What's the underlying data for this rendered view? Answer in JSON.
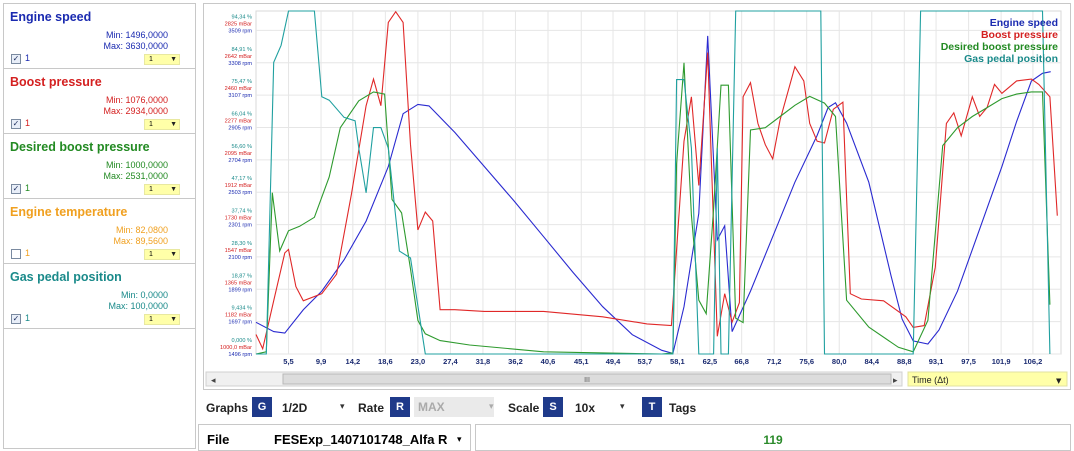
{
  "signals": [
    {
      "name": "Engine speed",
      "color": "#1a2ab0",
      "min": "Min: 1496,0000",
      "max": "Max: 3630,0000",
      "checked": true,
      "id": "1",
      "combo": "1"
    },
    {
      "name": "Boost pressure",
      "color": "#d42020",
      "min": "Min: 1076,0000",
      "max": "Max: 2934,0000",
      "checked": true,
      "id": "1",
      "combo": "1"
    },
    {
      "name": "Desired boost pressure",
      "color": "#228a22",
      "min": "Min: 1000,0000",
      "max": "Max: 2531,0000",
      "checked": true,
      "id": "1",
      "combo": "1"
    },
    {
      "name": "Engine temperature",
      "color": "#f0a020",
      "min": "Min: 82,0800",
      "max": "Max: 89,5600",
      "checked": false,
      "id": "1",
      "combo": "1"
    },
    {
      "name": "Gas pedal position",
      "color": "#1a8a8a",
      "min": "Min: 0,0000",
      "max": "Max: 100,0000",
      "checked": true,
      "id": "1",
      "combo": "1"
    }
  ],
  "chart_data": {
    "type": "line",
    "y_tick_rows": [
      [
        "94,34 %",
        "2825 mBar",
        "3509 rpm"
      ],
      [
        "84,91 %",
        "2642 mBar",
        "3308 rpm"
      ],
      [
        "75,47 %",
        "2460 mBar",
        "3107 rpm"
      ],
      [
        "66,04 %",
        "2277 mBar",
        "2905 rpm"
      ],
      [
        "56,60 %",
        "2095 mBar",
        "2704 rpm"
      ],
      [
        "47,17 %",
        "1912 mBar",
        "2503 rpm"
      ],
      [
        "37,74 %",
        "1730 mBar",
        "2301 rpm"
      ],
      [
        "28,30 %",
        "1547 mBar",
        "2100 rpm"
      ],
      [
        "18,87 %",
        "1365 mBar",
        "1899 rpm"
      ],
      [
        "9,434 %",
        "1182 mBar",
        "1697 rpm"
      ],
      [
        "0,000 %",
        "1000,0 mBar",
        "1496 rpm"
      ]
    ],
    "y_tick_colors": [
      "#1a8a8a",
      "#d42020",
      "#1a2ab0"
    ],
    "x_ticks": [
      "5,5",
      "9,9",
      "14,2",
      "18,6",
      "23,0",
      "27,4",
      "31,8",
      "36,2",
      "40,6",
      "45,1",
      "49,4",
      "53,7",
      "58,1",
      "62,5",
      "66,8",
      "71,2",
      "75,6",
      "80,0",
      "84,4",
      "88,8",
      "93,1",
      "97,5",
      "101,9",
      "106,2"
    ],
    "x_range": [
      1.1,
      110
    ],
    "legend_position": "top-right",
    "grid": true,
    "series": [
      {
        "name": "Engine speed",
        "unit": "rpm",
        "range": [
          1496,
          3700
        ],
        "color": "#2a2ad0",
        "points": [
          [
            1.1,
            1700
          ],
          [
            3.5,
            1640
          ],
          [
            5.0,
            1630
          ],
          [
            7.5,
            1780
          ],
          [
            10,
            1900
          ],
          [
            13,
            2100
          ],
          [
            16,
            2350
          ],
          [
            19,
            2700
          ],
          [
            21,
            3040
          ],
          [
            23,
            3100
          ],
          [
            24.5,
            3090
          ],
          [
            28,
            2920
          ],
          [
            32,
            2700
          ],
          [
            36,
            2480
          ],
          [
            40,
            2250
          ],
          [
            44,
            2020
          ],
          [
            48,
            1800
          ],
          [
            52,
            1620
          ],
          [
            56,
            1520
          ],
          [
            57.5,
            1500
          ],
          [
            59,
            1800
          ],
          [
            61,
            2400
          ],
          [
            62.2,
            3540
          ],
          [
            63.5,
            2230
          ],
          [
            64.5,
            2320
          ],
          [
            65.5,
            1640
          ],
          [
            68,
            1900
          ],
          [
            71,
            2250
          ],
          [
            74,
            2600
          ],
          [
            77,
            2900
          ],
          [
            78.5,
            3080
          ],
          [
            79.5,
            3110
          ],
          [
            81,
            2980
          ],
          [
            84,
            2600
          ],
          [
            87,
            2000
          ],
          [
            88.5,
            1720
          ],
          [
            90,
            1580
          ],
          [
            92,
            1560
          ],
          [
            93.5,
            1650
          ],
          [
            96,
            1900
          ],
          [
            99,
            2300
          ],
          [
            102,
            2700
          ],
          [
            104,
            2990
          ],
          [
            106,
            3250
          ],
          [
            107.5,
            3300
          ],
          [
            108.6,
            3310
          ]
        ]
      },
      {
        "name": "Boost pressure",
        "unit": "mBar",
        "range": [
          1000,
          2934
        ],
        "color": "#e02828",
        "points": [
          [
            1.1,
            1110
          ],
          [
            2,
            1030
          ],
          [
            3.5,
            1300
          ],
          [
            5.0,
            1570
          ],
          [
            5.5,
            1590
          ],
          [
            6.5,
            1380
          ],
          [
            7.5,
            1300
          ],
          [
            10,
            1340
          ],
          [
            12,
            1450
          ],
          [
            14,
            1900
          ],
          [
            16,
            2400
          ],
          [
            17,
            2550
          ],
          [
            18,
            2400
          ],
          [
            19,
            2870
          ],
          [
            20,
            2930
          ],
          [
            21,
            2870
          ],
          [
            22,
            2180
          ],
          [
            23,
            1700
          ],
          [
            24,
            1800
          ],
          [
            25,
            1750
          ],
          [
            26,
            1250
          ],
          [
            28,
            1250
          ],
          [
            32,
            1240
          ],
          [
            40,
            1240
          ],
          [
            48,
            1210
          ],
          [
            54,
            1170
          ],
          [
            57.3,
            1160
          ],
          [
            59,
            2200
          ],
          [
            60,
            2450
          ],
          [
            61,
            1950
          ],
          [
            62.2,
            2700
          ],
          [
            63.5,
            1100
          ],
          [
            64.5,
            1340
          ],
          [
            65.5,
            1180
          ],
          [
            66.5,
            1290
          ],
          [
            67,
            2450
          ],
          [
            68,
            2530
          ],
          [
            69,
            2300
          ],
          [
            70,
            2180
          ],
          [
            71,
            2100
          ],
          [
            72,
            2320
          ],
          [
            74,
            2620
          ],
          [
            75.2,
            2540
          ],
          [
            76,
            2300
          ],
          [
            77,
            2200
          ],
          [
            78,
            2190
          ],
          [
            79.2,
            2380
          ],
          [
            80.5,
            2420
          ],
          [
            81.5,
            1340
          ],
          [
            83,
            1310
          ],
          [
            86,
            1300
          ],
          [
            89,
            1210
          ],
          [
            90,
            1150
          ],
          [
            91.5,
            1160
          ],
          [
            93,
            1490
          ],
          [
            94.5,
            2300
          ],
          [
            95.5,
            2360
          ],
          [
            96.5,
            2230
          ],
          [
            98,
            2450
          ],
          [
            99,
            2340
          ],
          [
            100,
            2390
          ],
          [
            101,
            2520
          ],
          [
            102,
            2470
          ],
          [
            104,
            2540
          ],
          [
            106,
            2550
          ],
          [
            107,
            2520
          ],
          [
            108.5,
            2450
          ],
          [
            109.5,
            1780
          ]
        ]
      },
      {
        "name": "Desired boost pressure",
        "unit": "mBar",
        "range": [
          1000,
          2531
        ],
        "color": "#2e9a2e",
        "points": [
          [
            1.1,
            1000
          ],
          [
            2.5,
            1010
          ],
          [
            3.3,
            1720
          ],
          [
            4.3,
            1460
          ],
          [
            5.5,
            1550
          ],
          [
            7,
            1570
          ],
          [
            9,
            1610
          ],
          [
            11,
            1790
          ],
          [
            12.5,
            2010
          ],
          [
            15,
            2130
          ],
          [
            17,
            2170
          ],
          [
            18.5,
            2160
          ],
          [
            19.5,
            1690
          ],
          [
            20.8,
            1630
          ],
          [
            22,
            1380
          ],
          [
            23,
            1150
          ],
          [
            24,
            1090
          ],
          [
            26,
            1060
          ],
          [
            30,
            1040
          ],
          [
            40,
            1010
          ],
          [
            56,
            1000
          ],
          [
            57.5,
            1005
          ],
          [
            58,
            1850
          ],
          [
            59,
            2300
          ],
          [
            60,
            1620
          ],
          [
            61,
            1240
          ],
          [
            62,
            1180
          ],
          [
            63,
            1650
          ],
          [
            64,
            2200
          ],
          [
            65,
            2200
          ],
          [
            66,
            1160
          ],
          [
            67,
            1140
          ],
          [
            68,
            2000
          ],
          [
            70,
            2010
          ],
          [
            72,
            2060
          ],
          [
            74,
            2110
          ],
          [
            76,
            2150
          ],
          [
            78,
            2120
          ],
          [
            79.5,
            2060
          ],
          [
            81,
            1240
          ],
          [
            84,
            1120
          ],
          [
            88,
            1030
          ],
          [
            90,
            1010
          ],
          [
            92,
            1150
          ],
          [
            94,
            1930
          ],
          [
            96,
            2010
          ],
          [
            98,
            2060
          ],
          [
            100,
            2100
          ],
          [
            102,
            2140
          ],
          [
            104,
            2160
          ],
          [
            106,
            2170
          ],
          [
            107.5,
            2170
          ],
          [
            108.5,
            1220
          ]
        ]
      },
      {
        "name": "Gas pedal position",
        "unit": "%",
        "range": [
          0,
          100
        ],
        "color": "#20a0a0",
        "points": [
          [
            1.1,
            0
          ],
          [
            2.5,
            0
          ],
          [
            3.5,
            85
          ],
          [
            4.5,
            90
          ],
          [
            5.5,
            100
          ],
          [
            9,
            100
          ],
          [
            10,
            75
          ],
          [
            11,
            74
          ],
          [
            13,
            69
          ],
          [
            14.5,
            68
          ],
          [
            15,
            60
          ],
          [
            16,
            47
          ],
          [
            17,
            66
          ],
          [
            18,
            66
          ],
          [
            19,
            60
          ],
          [
            20.5,
            30
          ],
          [
            22,
            28
          ],
          [
            24,
            0
          ],
          [
            40,
            0
          ],
          [
            56,
            0
          ],
          [
            57.5,
            0
          ],
          [
            58,
            80
          ],
          [
            59,
            80
          ],
          [
            60,
            60
          ],
          [
            61,
            0
          ],
          [
            63,
            0
          ],
          [
            63.5,
            60
          ],
          [
            64,
            0
          ],
          [
            65,
            0
          ],
          [
            66,
            100
          ],
          [
            77.5,
            100
          ],
          [
            78,
            0
          ],
          [
            90,
            0
          ],
          [
            91,
            100
          ],
          [
            107.5,
            100
          ],
          [
            108.5,
            0
          ]
        ]
      }
    ]
  },
  "scrollbar": {
    "thumb_label": "III"
  },
  "time_axis": {
    "label": "Time (Δt)"
  },
  "toolbar": {
    "graphs_label": "Graphs",
    "graphs_key": "G",
    "graphs_value": "1/2D",
    "rate_label": "Rate",
    "rate_key": "R",
    "rate_value": "MAX",
    "scale_label": "Scale",
    "scale_key": "S",
    "scale_value": "10x",
    "tags_key": "T",
    "tags_label": "Tags"
  },
  "file": {
    "label": "File",
    "value": "FESExp_1407101748_Alfa R"
  },
  "sample_count": "119"
}
